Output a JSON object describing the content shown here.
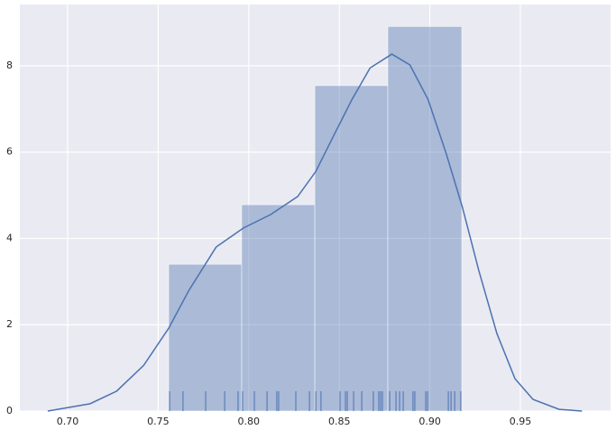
{
  "chart_data": {
    "type": "histogram",
    "color": "#4c72b0",
    "grid": true,
    "bins": [
      0.7558,
      0.7961,
      0.8365,
      0.8768,
      0.9176
    ],
    "counts": [
      3.4,
      4.78,
      7.54,
      8.91
    ],
    "kde": {
      "x": [
        0.689,
        0.7124,
        0.727,
        0.742,
        0.7558,
        0.767,
        0.782,
        0.797,
        0.812,
        0.827,
        0.837,
        0.847,
        0.857,
        0.867,
        0.879,
        0.889,
        0.899,
        0.909,
        0.918,
        0.927,
        0.937,
        0.947,
        0.957,
        0.9714,
        0.984
      ],
      "y": [
        0,
        0.17,
        0.46,
        1.06,
        1.92,
        2.8,
        3.8,
        4.24,
        4.55,
        4.97,
        5.55,
        6.39,
        7.22,
        7.95,
        8.27,
        8.02,
        7.22,
        5.97,
        4.72,
        3.26,
        1.8,
        0.75,
        0.27,
        0.04,
        0
      ]
    },
    "rug": [
      0.7563,
      0.7637,
      0.7762,
      0.7867,
      0.7941,
      0.7966,
      0.8031,
      0.8101,
      0.8155,
      0.8165,
      0.826,
      0.8335,
      0.837,
      0.8399,
      0.8504,
      0.8534,
      0.8544,
      0.8579,
      0.8624,
      0.8688,
      0.8718,
      0.8728,
      0.8738,
      0.8778,
      0.8813,
      0.8833,
      0.8853,
      0.8907,
      0.8917,
      0.8977,
      0.8987,
      0.9102,
      0.9117,
      0.9137,
      0.9171
    ],
    "xlim": [
      0.6736,
      0.9998
    ],
    "ylim": [
      0,
      9.42
    ],
    "xticks": [
      {
        "value": 0.7,
        "label": "0.70"
      },
      0.75,
      {
        "value": 0.8,
        "label": "0.80"
      },
      0.85,
      {
        "value": 0.9,
        "label": "0.90"
      },
      0.95
    ],
    "yticks": [
      0,
      2,
      4,
      6,
      8
    ]
  }
}
